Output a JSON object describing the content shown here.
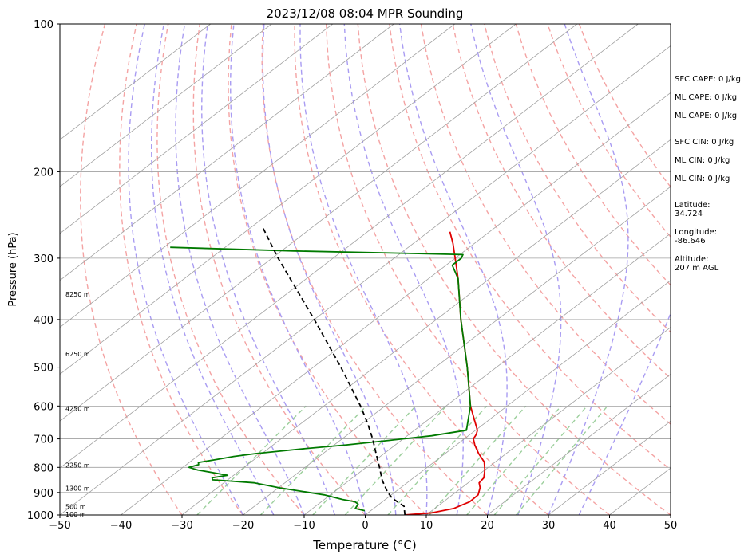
{
  "chart_data": {
    "type": "line",
    "title": "2023/12/08 08:04 MPR Sounding",
    "xlabel": "Temperature (°C)",
    "ylabel": "Pressure (hPa)",
    "xlim": [
      -50,
      50
    ],
    "ylim": [
      1000,
      100
    ],
    "y_scale": "log",
    "x_ticks": [
      -50,
      -40,
      -30,
      -20,
      -10,
      0,
      10,
      20,
      30,
      40,
      50
    ],
    "y_ticks": [
      1000,
      900,
      800,
      700,
      600,
      500,
      400,
      300,
      200,
      100
    ],
    "grid": true,
    "colors": {
      "temperature": "#e00000",
      "dewpoint": "#007a00",
      "parcel": "#000000",
      "dry_adiabats": "#f4a3a3",
      "moist_adiabats": "#a99cf2",
      "mixing_ratio": "#9ccf9c",
      "isotherms": "#a0a0a0"
    },
    "series": [
      {
        "key": "temperature",
        "pressure": [
          1000,
          990,
          970,
          940,
          910,
          880,
          860,
          840,
          810,
          780,
          750,
          720,
          700,
          685,
          672
        ],
        "values": [
          6.5,
          10.5,
          13.1,
          14.3,
          14.2,
          13.0,
          11.8,
          11.5,
          10.0,
          8.2,
          5.5,
          3.0,
          1.5,
          1.0,
          0.3
        ]
      },
      {
        "key": "temperature_upper",
        "pressure": [
          672,
          600,
          500,
          400,
          330,
          300,
          280,
          265
        ],
        "values": [
          0.3,
          -6.0,
          -14.8,
          -26.0,
          -35.2,
          -40.0,
          -43.5,
          -46.5
        ]
      },
      {
        "key": "dewpoint",
        "pressure": [
          980,
          970,
          950,
          940,
          930,
          910,
          880,
          860,
          848,
          840,
          830,
          820,
          810,
          800,
          790,
          782,
          770,
          760,
          750,
          735,
          720,
          705,
          690,
          672,
          600,
          500,
          400,
          330,
          310,
          305,
          300,
          295,
          293,
          290,
          285
        ],
        "values": [
          -1.0,
          -3.0,
          -3.5,
          -4.5,
          -7.0,
          -11.0,
          -20.0,
          -25.0,
          -32.5,
          -33.0,
          -31.0,
          -34.0,
          -37.0,
          -39.0,
          -38.0,
          -38.5,
          -36.0,
          -34.0,
          -31.0,
          -25.0,
          -18.0,
          -12.0,
          -6.0,
          -1.5,
          -6.0,
          -14.8,
          -26.0,
          -35.2,
          -39.0,
          -39.0,
          -39.0,
          -39.5,
          -50.0,
          -68.0,
          -89.0
        ]
      },
      {
        "key": "parcel",
        "pressure": [
          1000,
          960,
          925,
          900,
          850,
          800,
          750,
          700,
          650,
          600,
          500,
          400,
          300,
          260
        ],
        "values": [
          6.5,
          4.5,
          0.9,
          -1.1,
          -4.6,
          -7.8,
          -11.3,
          -15.0,
          -19.2,
          -24.0,
          -35.5,
          -50.0,
          -69.0,
          -78.0
        ]
      }
    ],
    "dry_adiabats_C": [
      -30,
      -20,
      -10,
      0,
      10,
      20,
      30,
      40,
      50,
      60,
      70,
      80,
      90,
      100,
      110,
      120
    ],
    "moist_adiabats_C": [
      -20,
      -15,
      -10,
      -5,
      0,
      5,
      10,
      15,
      20,
      25,
      30,
      35
    ],
    "mixing_ratios_gkg": [
      0.4,
      1,
      2,
      3,
      5,
      8,
      12,
      16,
      20
    ],
    "height_labels": [
      {
        "text": "100 m",
        "p": 997
      },
      {
        "text": "500 m",
        "p": 962
      },
      {
        "text": "1300 m",
        "p": 882
      },
      {
        "text": "2250 m",
        "p": 792
      },
      {
        "text": "4250 m",
        "p": 607
      },
      {
        "text": "6250 m",
        "p": 470
      },
      {
        "text": "8250 m",
        "p": 355
      }
    ],
    "annotations": [
      [
        "SFC CAPE: 0 J/kg"
      ],
      [
        "ML CAPE: 0 J/kg"
      ],
      [
        "ML CAPE: 0 J/kg"
      ],
      [
        "SFC CIN: 0 J/kg"
      ],
      [
        "ML CIN: 0 J/kg"
      ],
      [
        "ML CIN: 0 J/kg"
      ],
      [
        "Latitude:",
        "34.724"
      ],
      [
        "Longitude:",
        "-86.646"
      ],
      [
        "Altitude:",
        "207 m AGL"
      ]
    ]
  }
}
